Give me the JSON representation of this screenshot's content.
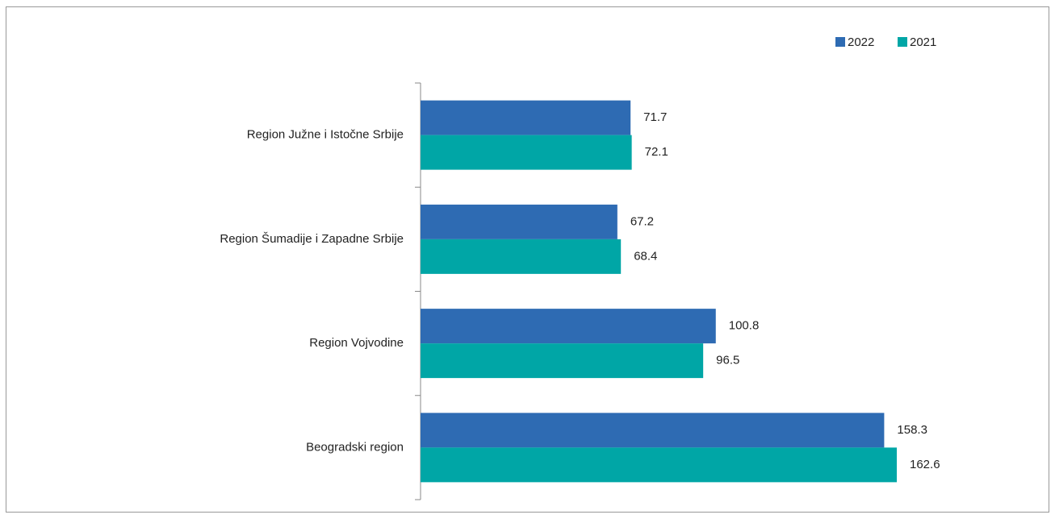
{
  "chart_data": {
    "type": "barh",
    "categories": [
      "Region Južne i Istočne Srbije",
      "Region Šumadije i Zapadne Srbije",
      "Region Vojvodine",
      "Beogradski region"
    ],
    "series": [
      {
        "name": "2022",
        "color": "#2e6bb3",
        "values": [
          71.7,
          67.2,
          100.8,
          158.3
        ]
      },
      {
        "name": "2021",
        "color": "#00a6a6",
        "values": [
          72.1,
          68.4,
          96.5,
          162.6
        ]
      }
    ],
    "legend": "top-right"
  }
}
